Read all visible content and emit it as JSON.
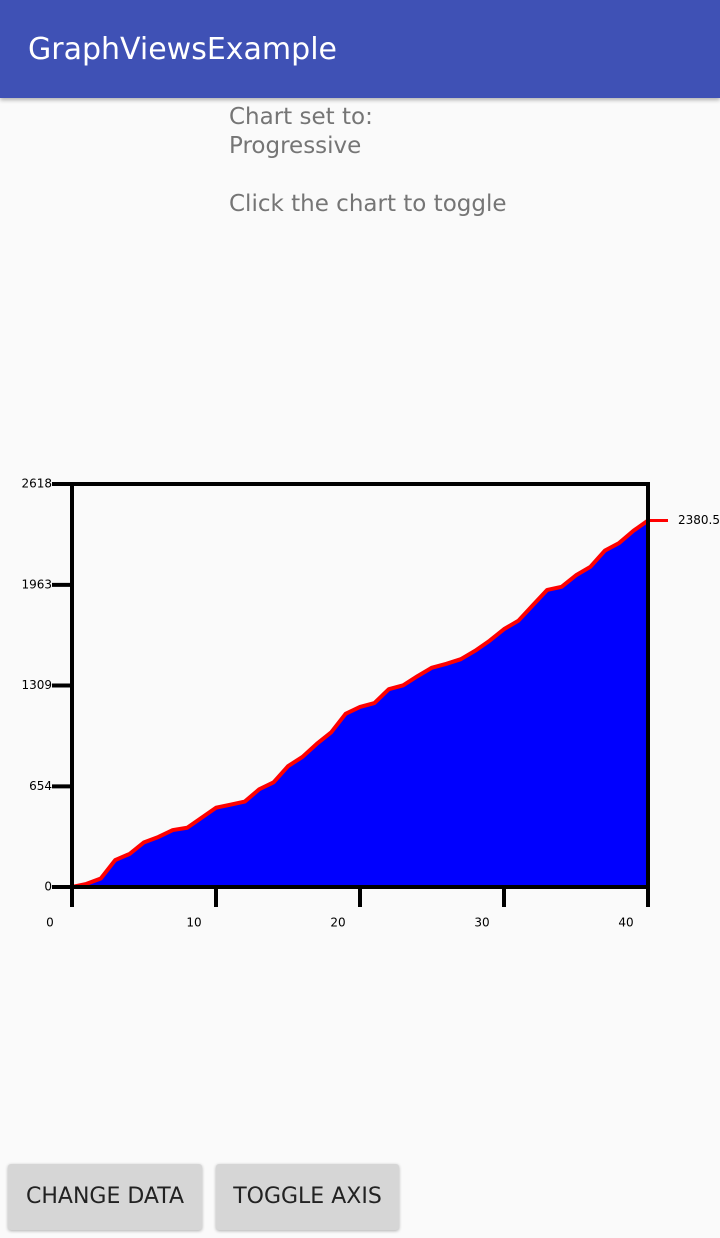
{
  "app_bar": {
    "title": "GraphViewsExample"
  },
  "status": {
    "label": "Chart set to:",
    "value": "Progressive"
  },
  "hint": "Click the chart to toggle",
  "chart_data": {
    "type": "area",
    "x": [
      0,
      1,
      2,
      3,
      4,
      5,
      6,
      7,
      8,
      9,
      10,
      11,
      12,
      13,
      14,
      15,
      16,
      17,
      18,
      19,
      20,
      21,
      22,
      23,
      24,
      25,
      26,
      27,
      28,
      29,
      30,
      31,
      32,
      33,
      34,
      35,
      36,
      37,
      38,
      39,
      40
    ],
    "values": [
      0,
      20,
      55,
      175,
      215,
      290,
      325,
      370,
      385,
      450,
      515,
      535,
      555,
      635,
      680,
      785,
      845,
      930,
      1005,
      1125,
      1170,
      1195,
      1285,
      1310,
      1370,
      1425,
      1450,
      1480,
      1535,
      1600,
      1675,
      1730,
      1830,
      1930,
      1950,
      2025,
      2080,
      2185,
      2235,
      2315,
      2380.5
    ],
    "fill_color": "#0000ff",
    "line_color": "#ff0000",
    "xlim": [
      0,
      40
    ],
    "xticks": [
      0,
      10,
      20,
      30,
      40
    ],
    "ylim": [
      0,
      2618
    ],
    "yticks": [
      0,
      654,
      1309,
      1963,
      2618
    ]
  },
  "buttons": [
    {
      "label": "CHANGE DATA"
    },
    {
      "label": "TOGGLE AXIS"
    }
  ]
}
